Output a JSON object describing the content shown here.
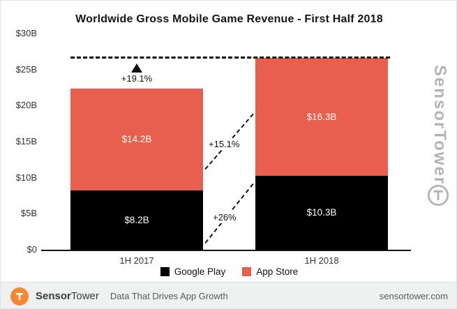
{
  "chart_data": {
    "type": "bar",
    "stacked": true,
    "title": "Worldwide Gross Mobile Game Revenue - First Half 2018",
    "categories": [
      "1H 2017",
      "1H 2018"
    ],
    "series": [
      {
        "name": "Google Play",
        "color": "#000000",
        "values": [
          8.2,
          10.3
        ],
        "labels": [
          "$8.2B",
          "$10.3B"
        ]
      },
      {
        "name": "App Store",
        "color": "#e8604d",
        "values": [
          14.2,
          16.3
        ],
        "labels": [
          "$14.2B",
          "$16.3B"
        ]
      }
    ],
    "totals": [
      22.4,
      26.6
    ],
    "ylim": [
      0,
      30
    ],
    "yticks": [
      "$0",
      "$5B",
      "$10B",
      "$15B",
      "$20B",
      "$25B",
      "$30B"
    ],
    "grid": false,
    "legend_position": "bottom",
    "annotations": {
      "total": "+19.1%",
      "app_store": "+15.1%",
      "google_play": "+26%"
    }
  },
  "watermark": "SensorTower",
  "footer": {
    "brand_sensor": "Sensor",
    "brand_tower": "Tower",
    "tagline": "Data That Drives App Growth",
    "domain": "sensortower.com"
  }
}
